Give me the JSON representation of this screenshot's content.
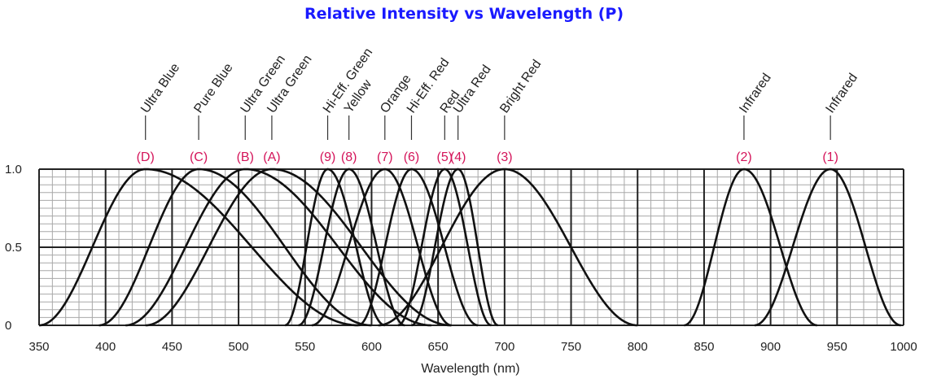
{
  "chart_data": {
    "type": "line",
    "title": "Relative Intensity vs Wavelength (P)",
    "xlabel": "Wavelength (nm)",
    "ylabel": "",
    "xlim": [
      350,
      1000
    ],
    "ylim": [
      0,
      1.0
    ],
    "x_ticks": [
      "350",
      "400",
      "450",
      "500",
      "550",
      "600",
      "650",
      "700",
      "750",
      "800",
      "850",
      "900",
      "950",
      "1000"
    ],
    "y_ticks": [
      "0",
      "0.5",
      "1.0"
    ],
    "grid": true,
    "series": [
      {
        "code": "(D)",
        "name": "Ultra Blue",
        "peak": 430,
        "left_zero": 350,
        "right_zero": 590
      },
      {
        "code": "(C)",
        "name": "Pure Blue",
        "peak": 470,
        "left_zero": 395,
        "right_zero": 600
      },
      {
        "code": "(B)",
        "name": "Ultra Green",
        "peak": 505,
        "left_zero": 415,
        "right_zero": 645
      },
      {
        "code": "(A)",
        "name": "Ultra Green",
        "peak": 525,
        "left_zero": 430,
        "right_zero": 660
      },
      {
        "code": "(9)",
        "name": "Hi-Eff. Green",
        "peak": 567,
        "left_zero": 535,
        "right_zero": 610
      },
      {
        "code": "(8)",
        "name": "Yellow",
        "peak": 583,
        "left_zero": 545,
        "right_zero": 625
      },
      {
        "code": "(7)",
        "name": "Orange",
        "peak": 610,
        "left_zero": 555,
        "right_zero": 660
      },
      {
        "code": "(6)",
        "name": "Hi-Eff. Red",
        "peak": 630,
        "left_zero": 590,
        "right_zero": 680
      },
      {
        "code": "(5)",
        "name": "Red",
        "peak": 655,
        "left_zero": 620,
        "right_zero": 690
      },
      {
        "code": "(4)",
        "name": "Ultra Red",
        "peak": 665,
        "left_zero": 630,
        "right_zero": 695
      },
      {
        "code": "(3)",
        "name": "Bright Red",
        "peak": 700,
        "left_zero": 605,
        "right_zero": 800
      },
      {
        "code": "(2)",
        "name": "Infrared",
        "peak": 880,
        "left_zero": 835,
        "right_zero": 935
      },
      {
        "code": "(1)",
        "name": "Infrared",
        "peak": 945,
        "left_zero": 888,
        "right_zero": 998
      }
    ]
  },
  "colors": {
    "title": "#1a1aff",
    "codes": "#d4145a",
    "curves": "#111111",
    "grid_minor": "#a8a8a8",
    "grid_major": "#222222"
  }
}
